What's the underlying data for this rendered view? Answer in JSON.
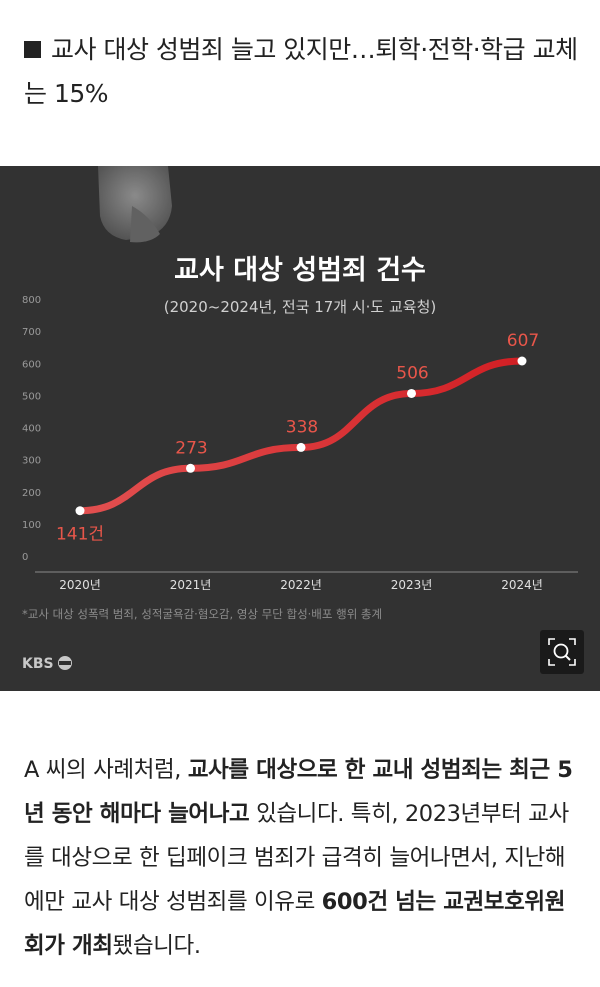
{
  "headline": "교사 대상 성범죄 늘고 있지만…퇴학·전학·학급 교체는 15%",
  "chart_data": {
    "type": "line",
    "title": "교사 대상 성범죄 건수",
    "subtitle": "(2020~2024년, 전국 17개 시·도 교육청)",
    "categories": [
      "2020년",
      "2021년",
      "2022년",
      "2023년",
      "2024년"
    ],
    "values": [
      141,
      273,
      338,
      506,
      607
    ],
    "value_labels": [
      "141건",
      "273",
      "338",
      "506",
      "607"
    ],
    "yticks": [
      "0",
      "100",
      "200",
      "300",
      "400",
      "500",
      "600",
      "700",
      "800"
    ],
    "ylim": [
      0,
      800
    ],
    "grid": false,
    "line_color": "#d92b2b",
    "label_color": "#e8564a",
    "footnote": "*교사 대상 성폭력 범죄, 성적굴욕감·혐오감, 영상 무단 합성·배포 행위 총계",
    "logo": "KBS"
  },
  "body_paragraph": [
    {
      "text": "A 씨의 사례처럼, ",
      "bold": false
    },
    {
      "text": "교사를 대상으로 한 교내 성범죄는 최근 5년 동안 해마다 늘어나고",
      "bold": true
    },
    {
      "text": " 있습니다. 특히, 2023년부터 교사를 대상으로 한 딥페이크 범죄가 급격히 늘어나면서, 지난해에만 교사 대상 성범죄를 이유로 ",
      "bold": false
    },
    {
      "text": "600건 넘는 교권보호위원회가 개최",
      "bold": true
    },
    {
      "text": "됐습니다.",
      "bold": false
    }
  ]
}
